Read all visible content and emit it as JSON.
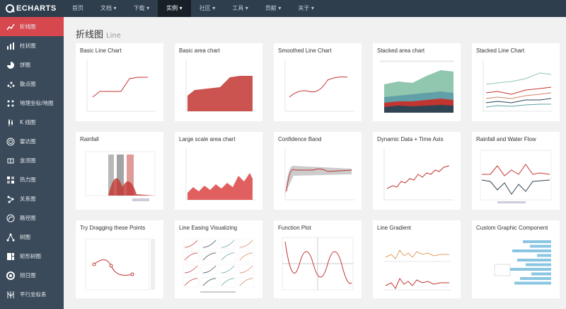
{
  "logo": {
    "text": "ECHARTS"
  },
  "nav": [
    {
      "label": "首页",
      "active": false
    },
    {
      "label": "文档 ▾",
      "active": false
    },
    {
      "label": "下载 ▾",
      "active": false
    },
    {
      "label": "实例 ▾",
      "active": true
    },
    {
      "label": "社区 ▾",
      "active": false
    },
    {
      "label": "工具 ▾",
      "active": false
    },
    {
      "label": "贡献 ▾",
      "active": false
    },
    {
      "label": "关于 ▾",
      "active": false
    }
  ],
  "sidebar": [
    {
      "label": "折线图",
      "icon": "line-chart-icon",
      "active": true
    },
    {
      "label": "柱状图",
      "icon": "bar-chart-icon"
    },
    {
      "label": "饼图",
      "icon": "pie-chart-icon"
    },
    {
      "label": "散点图",
      "icon": "scatter-icon"
    },
    {
      "label": "地理坐标/地图",
      "icon": "map-icon"
    },
    {
      "label": "K 线图",
      "icon": "candlestick-icon"
    },
    {
      "label": "雷达图",
      "icon": "radar-icon"
    },
    {
      "label": "盒须图",
      "icon": "boxplot-icon"
    },
    {
      "label": "热力图",
      "icon": "heatmap-icon"
    },
    {
      "label": "关系图",
      "icon": "graph-icon"
    },
    {
      "label": "路径图",
      "icon": "lines-icon"
    },
    {
      "label": "树图",
      "icon": "tree-icon"
    },
    {
      "label": "矩形树图",
      "icon": "treemap-icon"
    },
    {
      "label": "旭日图",
      "icon": "sunburst-icon"
    },
    {
      "label": "平行坐标系",
      "icon": "parallel-icon"
    }
  ],
  "page": {
    "title": "折线图",
    "subtitle": "Line"
  },
  "cards": [
    {
      "title": "Basic Line Chart",
      "kind": "line"
    },
    {
      "title": "Basic area chart",
      "kind": "area"
    },
    {
      "title": "Smoothed Line Chart",
      "kind": "smooth"
    },
    {
      "title": "Stacked area chart",
      "kind": "stackarea"
    },
    {
      "title": "Stacked Line Chart",
      "kind": "stackline"
    },
    {
      "title": "Rainfall",
      "kind": "rainfall"
    },
    {
      "title": "Large scale area chart",
      "kind": "large"
    },
    {
      "title": "Confidence Band",
      "kind": "confidence"
    },
    {
      "title": "Dynamic Data + Time Axis",
      "kind": "dynamic"
    },
    {
      "title": "Rainfall and Water Flow",
      "kind": "waterflow"
    },
    {
      "title": "Try Dragging these Points",
      "kind": "drag"
    },
    {
      "title": "Line Easing Visualizing",
      "kind": "easing"
    },
    {
      "title": "Function Plot",
      "kind": "function"
    },
    {
      "title": "Line Gradient",
      "kind": "gradient"
    },
    {
      "title": "Custom Graphic Component",
      "kind": "custom"
    }
  ],
  "colors": {
    "accent": "#d7474e",
    "nav": "#2f3e4d",
    "sidebar": "#3a4a5a",
    "line": "#c23531"
  }
}
